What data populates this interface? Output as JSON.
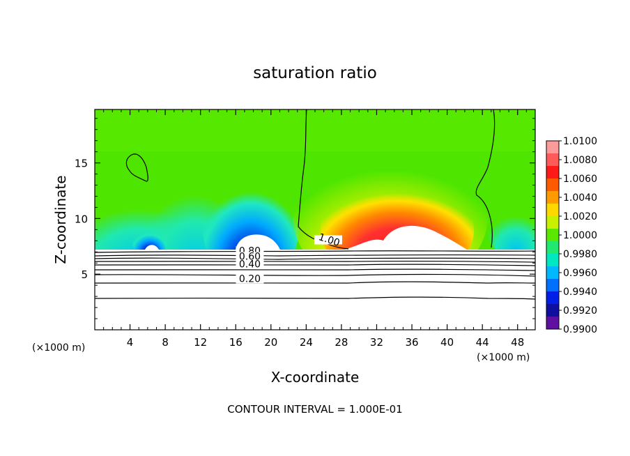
{
  "chart_data": {
    "type": "heatmap",
    "title": "saturation ratio",
    "xlabel": "X-coordinate",
    "ylabel": "Z-coordinate",
    "x_unit_label": "(×1000 m)",
    "y_unit_label": "(×1000 m)",
    "xlim": [
      0,
      50
    ],
    "ylim": [
      0,
      19.8
    ],
    "x_ticks": [
      4,
      8,
      12,
      16,
      20,
      24,
      28,
      32,
      36,
      40,
      44,
      48
    ],
    "y_ticks": [
      5,
      10,
      15
    ],
    "contour_interval_label": "CONTOUR INTERVAL = 1.000E-01",
    "contour_labels": [
      {
        "text": "1.00",
        "x": 26.5,
        "y": 7.8
      },
      {
        "text": "0.80",
        "x": 17.6,
        "y": 6.8
      },
      {
        "text": "0.60",
        "x": 17.6,
        "y": 6.3
      },
      {
        "text": "0.40",
        "x": 17.6,
        "y": 5.6
      },
      {
        "text": "0.20",
        "x": 17.6,
        "y": 4.3
      }
    ],
    "colorbar": {
      "labels": [
        "1.0100",
        "1.0080",
        "1.0060",
        "1.0040",
        "1.0020",
        "1.0000",
        "0.9980",
        "0.9960",
        "0.9940",
        "0.9920",
        "0.9900"
      ],
      "colors": [
        "#ff9a9a",
        "#ff5a5a",
        "#ff1a1a",
        "#ff5a00",
        "#ff9a00",
        "#ffd800",
        "#c8f000",
        "#5ae800",
        "#20e870",
        "#00e8c0",
        "#00b8ff",
        "#0070ff",
        "#0020e8",
        "#1010a0",
        "#6010a0"
      ]
    }
  }
}
